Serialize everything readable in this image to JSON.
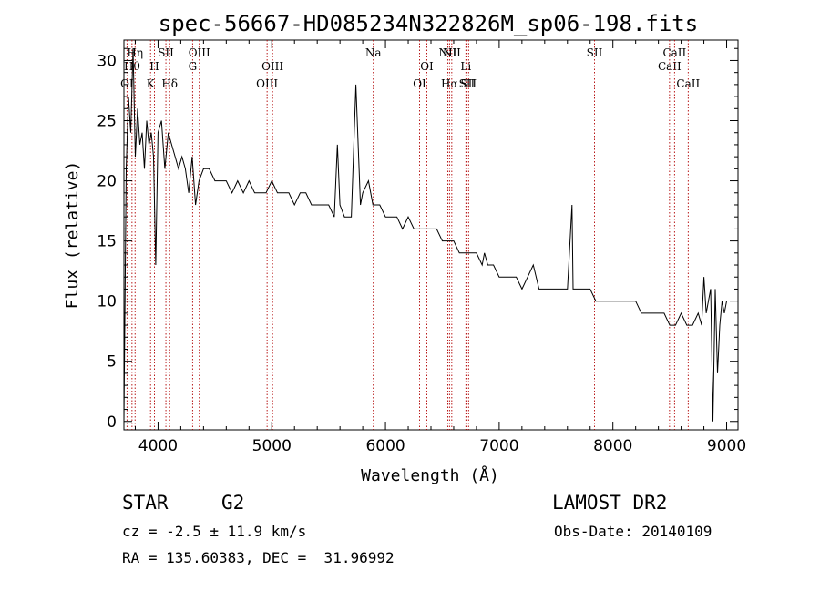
{
  "chart_data": {
    "type": "line",
    "title": "spec-56667-HD085234N322826M_sp06-198.fits",
    "xlabel": "Wavelength (Å)",
    "ylabel": "Flux (relative)",
    "xlim": [
      3700,
      9100
    ],
    "ylim": [
      -0.7,
      31.7
    ],
    "xticks": [
      4000,
      5000,
      6000,
      7000,
      8000,
      9000
    ],
    "yticks": [
      0,
      5,
      10,
      15,
      20,
      25,
      30
    ],
    "grid": false,
    "series": [
      {
        "x": [
          3700,
          3720,
          3740,
          3760,
          3780,
          3800,
          3820,
          3840,
          3860,
          3880,
          3900,
          3920,
          3940,
          3960,
          3980,
          4000,
          4030,
          4060,
          4090,
          4120,
          4150,
          4180,
          4210,
          4240,
          4270,
          4300,
          4330,
          4360,
          4400,
          4450,
          4500,
          4550,
          4600,
          4650,
          4700,
          4750,
          4800,
          4850,
          4900,
          4950,
          5000,
          5050,
          5100,
          5150,
          5200,
          5250,
          5300,
          5350,
          5400,
          5450,
          5500,
          5550,
          5577,
          5600,
          5640,
          5680,
          5700,
          5740,
          5780,
          5800,
          5850,
          5890,
          5900,
          5950,
          6000,
          6050,
          6100,
          6150,
          6200,
          6250,
          6300,
          6350,
          6400,
          6450,
          6500,
          6550,
          6600,
          6650,
          6700,
          6750,
          6800,
          6850,
          6870,
          6900,
          6950,
          7000,
          7050,
          7100,
          7150,
          7200,
          7250,
          7300,
          7350,
          7400,
          7450,
          7500,
          7550,
          7600,
          7640,
          7650,
          7700,
          7750,
          7800,
          7850,
          7900,
          7950,
          8000,
          8050,
          8100,
          8150,
          8200,
          8250,
          8300,
          8350,
          8400,
          8450,
          8500,
          8550,
          8600,
          8650,
          8700,
          8750,
          8780,
          8800,
          8820,
          8840,
          8860,
          8880,
          8900,
          8920,
          8940,
          8960,
          8980,
          9000
        ],
        "y": [
          0,
          21,
          27,
          24,
          31,
          22,
          26,
          23,
          24,
          21,
          25,
          23,
          24,
          22,
          13,
          24,
          25,
          21,
          24,
          23,
          22,
          21,
          22,
          21,
          19,
          22,
          18,
          20,
          21,
          21,
          20,
          20,
          20,
          19,
          20,
          19,
          20,
          19,
          19,
          19,
          20,
          19,
          19,
          19,
          18,
          19,
          19,
          18,
          18,
          18,
          18,
          17,
          23,
          18,
          17,
          17,
          17,
          28,
          18,
          19,
          20,
          18,
          18,
          18,
          17,
          17,
          17,
          16,
          17,
          16,
          16,
          16,
          16,
          16,
          15,
          15,
          15,
          14,
          14,
          14,
          14,
          13,
          14,
          13,
          13,
          12,
          12,
          12,
          12,
          11,
          12,
          13,
          11,
          11,
          11,
          11,
          11,
          11,
          18,
          11,
          11,
          11,
          11,
          10,
          10,
          10,
          10,
          10,
          10,
          10,
          10,
          9,
          9,
          9,
          9,
          9,
          8,
          8,
          9,
          8,
          8,
          9,
          8,
          12,
          9,
          10,
          11,
          0,
          11,
          4,
          8,
          10,
          9,
          10
        ]
      }
    ],
    "line_labels": [
      {
        "x": 3727,
        "row": 3,
        "text": "OI"
      },
      {
        "x": 3771,
        "row": 2,
        "text": "Hθ"
      },
      {
        "x": 3798,
        "row": 1,
        "text": "Hη"
      },
      {
        "x": 3934,
        "row": 3,
        "text": "K"
      },
      {
        "x": 3968,
        "row": 2,
        "text": "H"
      },
      {
        "x": 4069,
        "row": 1,
        "text": "SII"
      },
      {
        "x": 4102,
        "row": 3,
        "text": "Hδ"
      },
      {
        "x": 4304,
        "row": 2,
        "text": "G"
      },
      {
        "x": 4363,
        "row": 1,
        "text": "OIII"
      },
      {
        "x": 4959,
        "row": 3,
        "text": "OIII"
      },
      {
        "x": 5007,
        "row": 2,
        "text": "OIII"
      },
      {
        "x": 5893,
        "row": 1,
        "text": "Na"
      },
      {
        "x": 6300,
        "row": 3,
        "text": "OI"
      },
      {
        "x": 6364,
        "row": 2,
        "text": "OI"
      },
      {
        "x": 6548,
        "row": 1,
        "text": "NII"
      },
      {
        "x": 6563,
        "row": 3,
        "text": "Hα"
      },
      {
        "x": 6583,
        "row": 1,
        "text": "NII"
      },
      {
        "x": 6707,
        "row": 2,
        "text": "Li"
      },
      {
        "x": 6716,
        "row": 3,
        "text": "SII"
      },
      {
        "x": 6731,
        "row": 3,
        "text": "SII"
      },
      {
        "x": 7838,
        "row": 1,
        "text": "SII"
      },
      {
        "x": 8498,
        "row": 2,
        "text": "CaII"
      },
      {
        "x": 8542,
        "row": 1,
        "text": "CaII"
      },
      {
        "x": 8662,
        "row": 3,
        "text": "CaII"
      }
    ]
  },
  "info": {
    "object_type": "STAR",
    "subclass": "G2",
    "survey": "LAMOST DR2",
    "redshift": "cz = -2.5 ± 11.9 km/s",
    "obs_date": "Obs-Date: 20140109",
    "coords": "RA = 135.60383, DEC =  31.96992"
  }
}
